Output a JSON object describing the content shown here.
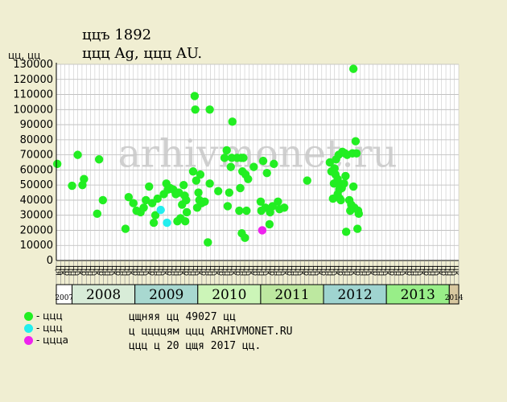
{
  "header": {
    "coin_line": "ццъ 1892",
    "metal_line": "ццц Ag, ццц AU.",
    "y_unit": "цц, цц"
  },
  "watermark": "arhivmonet.ru",
  "legend": [
    {
      "color": "#22ee22",
      "label": "- ццц"
    },
    {
      "color": "#22eeee",
      "label": "- ццц"
    },
    {
      "color": "#ee22ee",
      "label": "- ццца"
    }
  ],
  "notes": {
    "line1": "цщняя цц 49027 цц",
    "line2": "ц ццццям ццц ARHIVMONET.RU",
    "line3": "ццц ц 20 цщя 2017 цц."
  },
  "chart_data": {
    "type": "scatter",
    "ylim": [
      0,
      130000
    ],
    "y_ticks": [
      0,
      10000,
      20000,
      30000,
      40000,
      50000,
      60000,
      70000,
      80000,
      90000,
      100000,
      110000,
      120000,
      130000
    ],
    "grid": true,
    "month_labels": [
      "ця",
      "цк",
      "цр",
      "цн",
      "цн",
      "цк",
      "цр",
      "цн",
      "цн",
      "цк",
      "цр",
      "цн",
      "цн",
      "цк",
      "цр",
      "цн",
      "цн",
      "цк",
      "цр",
      "цн",
      "цн",
      "цк",
      "цр",
      "цн",
      "цн",
      "цк",
      "цр",
      "цн",
      "цн",
      "цк",
      "цр",
      "цн",
      "цн",
      "цк",
      "цр",
      "цн",
      "цн",
      "цк",
      "цр",
      "цн",
      "цн",
      "цк",
      "цр",
      "цн",
      "цн",
      "цк",
      "цр",
      "цн",
      "цн",
      "цк",
      "цр",
      "цн",
      "цн",
      "цк",
      "цр",
      "цн",
      "цн",
      "цк",
      "цр",
      "цн",
      "цн",
      "цк",
      "цр",
      "цн",
      "цн",
      "цк",
      "цр",
      "цн",
      "цн",
      "цк",
      "цр",
      "цн",
      "цн",
      "цк",
      "цр",
      "цн",
      "цн",
      "цк",
      "цр",
      "цн",
      "цн",
      "цк",
      "цр",
      "цн",
      "цн",
      "цк",
      "цр",
      "цн",
      "цн",
      "цк",
      "цр",
      "цн",
      "цн",
      "цк"
    ],
    "years": [
      {
        "label": "2007",
        "start": 0,
        "end": 0.5,
        "color": "#ffffff"
      },
      {
        "label": "2008",
        "start": 0.5,
        "end": 2.5,
        "color": "#d8ecd8"
      },
      {
        "label": "2009",
        "start": 2.5,
        "end": 4.5,
        "color": "#a8d8d0"
      },
      {
        "label": "2010",
        "start": 4.5,
        "end": 6.5,
        "color": "#ccf5b8"
      },
      {
        "label": "2011",
        "start": 6.5,
        "end": 8.5,
        "color": "#bde8a0"
      },
      {
        "label": "2012",
        "start": 8.5,
        "end": 10.5,
        "color": "#9fd4d0"
      },
      {
        "label": "2013",
        "start": 10.5,
        "end": 12.5,
        "color": "#98ee88"
      },
      {
        "label": "2014",
        "start": 12.5,
        "end": 12.8,
        "color": "#d8c8a0"
      }
    ],
    "series": [
      {
        "color": "#22ee22",
        "points": [
          [
            0.03,
            64000
          ],
          [
            0.5,
            49500
          ],
          [
            0.68,
            70000
          ],
          [
            0.83,
            50000
          ],
          [
            0.88,
            54000
          ],
          [
            1.3,
            31000
          ],
          [
            1.36,
            67000
          ],
          [
            1.48,
            40000
          ],
          [
            2.2,
            21000
          ],
          [
            2.3,
            42000
          ],
          [
            2.45,
            38000
          ],
          [
            2.55,
            33000
          ],
          [
            2.68,
            32000
          ],
          [
            2.78,
            35000
          ],
          [
            2.85,
            40000
          ],
          [
            2.95,
            49000
          ],
          [
            3.05,
            38000
          ],
          [
            3.1,
            25000
          ],
          [
            3.15,
            30000
          ],
          [
            3.22,
            41000
          ],
          [
            3.42,
            44000
          ],
          [
            3.5,
            51000
          ],
          [
            3.55,
            47000
          ],
          [
            3.62,
            48000
          ],
          [
            3.72,
            47000
          ],
          [
            3.8,
            44000
          ],
          [
            3.85,
            26000
          ],
          [
            3.9,
            45000
          ],
          [
            3.95,
            28000
          ],
          [
            4.0,
            37000
          ],
          [
            4.05,
            50000
          ],
          [
            4.08,
            43000
          ],
          [
            4.1,
            26000
          ],
          [
            4.13,
            40000
          ],
          [
            4.15,
            32000
          ],
          [
            4.35,
            59000
          ],
          [
            4.4,
            109000
          ],
          [
            4.42,
            100000
          ],
          [
            4.45,
            53000
          ],
          [
            4.48,
            35000
          ],
          [
            4.52,
            45000
          ],
          [
            4.55,
            40000
          ],
          [
            4.58,
            57000
          ],
          [
            4.62,
            38000
          ],
          [
            4.72,
            39000
          ],
          [
            4.82,
            12000
          ],
          [
            4.88,
            51000
          ],
          [
            4.88,
            100000
          ],
          [
            5.15,
            46000
          ],
          [
            5.35,
            68000
          ],
          [
            5.42,
            73000
          ],
          [
            5.45,
            36000
          ],
          [
            5.5,
            45000
          ],
          [
            5.55,
            62000
          ],
          [
            5.58,
            68000
          ],
          [
            5.6,
            92000
          ],
          [
            5.75,
            68000
          ],
          [
            5.82,
            33000
          ],
          [
            5.85,
            48000
          ],
          [
            5.88,
            68000
          ],
          [
            5.9,
            18000
          ],
          [
            5.92,
            59000
          ],
          [
            5.95,
            68000
          ],
          [
            6.0,
            15000
          ],
          [
            6.02,
            57000
          ],
          [
            6.05,
            33000
          ],
          [
            6.1,
            54000
          ],
          [
            6.28,
            62000
          ],
          [
            6.5,
            39000
          ],
          [
            6.52,
            33000
          ],
          [
            6.58,
            66000
          ],
          [
            6.65,
            35000
          ],
          [
            6.7,
            58000
          ],
          [
            6.78,
            24000
          ],
          [
            6.8,
            32000
          ],
          [
            6.88,
            36000
          ],
          [
            6.92,
            64000
          ],
          [
            7.05,
            39000
          ],
          [
            7.1,
            34000
          ],
          [
            7.25,
            35000
          ],
          [
            7.98,
            53000
          ],
          [
            8.7,
            65000
          ],
          [
            8.75,
            59000
          ],
          [
            8.8,
            41000
          ],
          [
            8.83,
            51000
          ],
          [
            8.85,
            61000
          ],
          [
            8.88,
            57000
          ],
          [
            8.9,
            67000
          ],
          [
            8.92,
            52000
          ],
          [
            8.95,
            44000
          ],
          [
            8.95,
            54000
          ],
          [
            8.98,
            70000
          ],
          [
            9.0,
            47000
          ],
          [
            9.02,
            41000
          ],
          [
            9.05,
            40000
          ],
          [
            9.08,
            48000
          ],
          [
            9.1,
            72000
          ],
          [
            9.15,
            51000
          ],
          [
            9.18,
            71000
          ],
          [
            9.2,
            56000
          ],
          [
            9.22,
            19000
          ],
          [
            9.25,
            70000
          ],
          [
            9.32,
            40000
          ],
          [
            9.35,
            33000
          ],
          [
            9.38,
            37000
          ],
          [
            9.42,
            71000
          ],
          [
            9.45,
            49000
          ],
          [
            9.45,
            127000
          ],
          [
            9.48,
            35000
          ],
          [
            9.52,
            79000
          ],
          [
            9.55,
            71000
          ],
          [
            9.58,
            21000
          ],
          [
            9.6,
            33000
          ],
          [
            9.62,
            31000
          ]
        ]
      },
      {
        "color": "#22eeee",
        "points": [
          [
            3.32,
            33500
          ],
          [
            3.52,
            25000
          ]
        ]
      },
      {
        "color": "#ee22ee",
        "points": [
          [
            6.55,
            20000
          ]
        ]
      }
    ]
  }
}
